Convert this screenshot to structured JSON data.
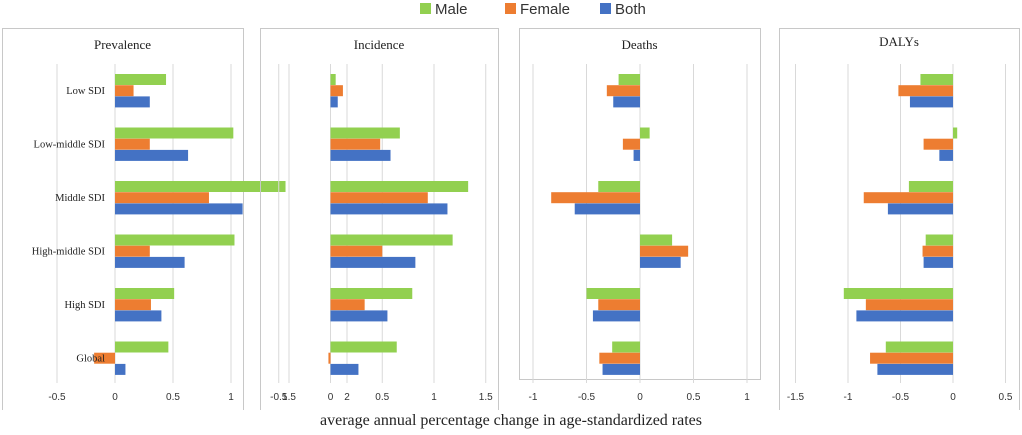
{
  "figure": {
    "xlabel": "average annual percentage change in age-standardized rates"
  },
  "colors": {
    "Male": "#92d050",
    "Female": "#ed7d31",
    "Both": "#4472c4"
  },
  "chart_data": [
    {
      "type": "bar",
      "orientation": "horizontal",
      "title": "Prevalence",
      "categories": [
        "Low SDI",
        "Low-middle SDI",
        "Middle SDI",
        "High-middle SDI",
        "High SDI",
        "Global"
      ],
      "series": [
        {
          "name": "Male",
          "values": [
            0.44,
            1.02,
            1.47,
            1.03,
            0.51,
            0.46
          ]
        },
        {
          "name": "Female",
          "values": [
            0.16,
            0.3,
            0.81,
            0.3,
            0.31,
            -0.18
          ]
        },
        {
          "name": "Both",
          "values": [
            0.3,
            0.63,
            1.1,
            0.6,
            0.4,
            0.09
          ]
        }
      ],
      "ticks": [
        "-0.5",
        "0",
        "0.5",
        "1",
        "1.5",
        "2"
      ],
      "xlim": [
        -0.5,
        2
      ]
    },
    {
      "type": "bar",
      "orientation": "horizontal",
      "title": "Incidence",
      "categories": [
        "Low SDI",
        "Low-middle SDI",
        "Middle SDI",
        "High-middle SDI",
        "High SDI",
        "Global"
      ],
      "series": [
        {
          "name": "Male",
          "values": [
            0.05,
            0.67,
            1.33,
            1.18,
            0.79,
            0.64
          ]
        },
        {
          "name": "Female",
          "values": [
            0.12,
            0.48,
            0.94,
            0.5,
            0.33,
            -0.02
          ]
        },
        {
          "name": "Both",
          "values": [
            0.07,
            0.58,
            1.13,
            0.82,
            0.55,
            0.27
          ]
        }
      ],
      "ticks": [
        "-0.5",
        "0",
        "0.5",
        "1",
        "1.5"
      ],
      "xlim": [
        -0.5,
        1.5
      ]
    },
    {
      "type": "bar",
      "orientation": "horizontal",
      "title": "Deaths",
      "categories": [
        "Low SDI",
        "Low-middle SDI",
        "Middle SDI",
        "High-middle SDI",
        "High SDI",
        "Global"
      ],
      "series": [
        {
          "name": "Male",
          "values": [
            -0.2,
            0.09,
            -0.39,
            0.3,
            -0.5,
            -0.26
          ]
        },
        {
          "name": "Female",
          "values": [
            -0.31,
            -0.16,
            -0.83,
            0.45,
            -0.39,
            -0.38
          ]
        },
        {
          "name": "Both",
          "values": [
            -0.25,
            -0.06,
            -0.61,
            0.38,
            -0.44,
            -0.35
          ]
        }
      ],
      "ticks": [
        "-1",
        "-0.5",
        "0",
        "0.5",
        "1"
      ],
      "xlim": [
        -1,
        1
      ]
    },
    {
      "type": "bar",
      "orientation": "horizontal",
      "title": "DALYs",
      "categories": [
        "Low SDI",
        "Low-middle SDI",
        "Middle SDI",
        "High-middle SDI",
        "High SDI",
        "Global"
      ],
      "series": [
        {
          "name": "Male",
          "values": [
            -0.31,
            0.04,
            -0.42,
            -0.26,
            -1.04,
            -0.64
          ]
        },
        {
          "name": "Female",
          "values": [
            -0.52,
            -0.28,
            -0.85,
            -0.29,
            -0.83,
            -0.79
          ]
        },
        {
          "name": "Both",
          "values": [
            -0.41,
            -0.13,
            -0.62,
            -0.28,
            -0.92,
            -0.72
          ]
        }
      ],
      "ticks": [
        "-1.5",
        "-1",
        "-0.5",
        "0",
        "0.5"
      ],
      "xlim": [
        -1.5,
        0.5
      ]
    }
  ]
}
